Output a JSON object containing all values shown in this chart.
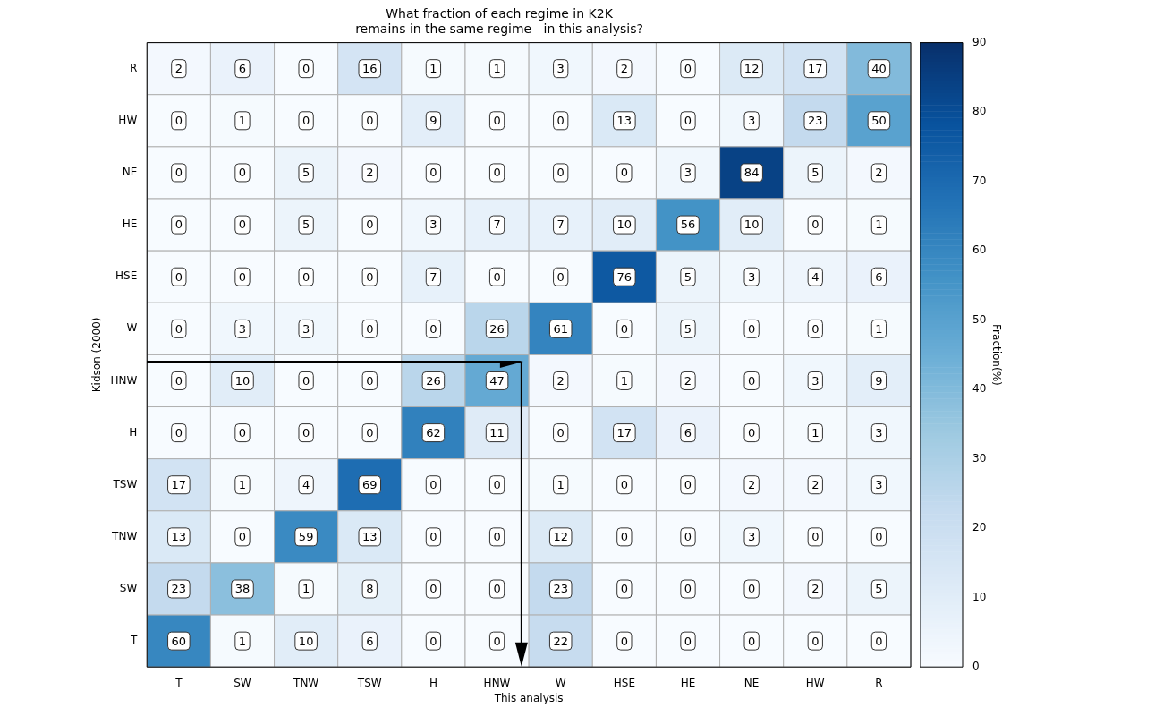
{
  "chart_data": {
    "type": "heatmap",
    "title": "What fraction of each regime in K2K\nremains in the same regime   in this analysis?",
    "xlabel": "This analysis",
    "ylabel": "Kidson (2000)",
    "clabel": "Fraction(%)",
    "categories": [
      "T",
      "SW",
      "TNW",
      "TSW",
      "H",
      "HNW",
      "W",
      "HSE",
      "HE",
      "NE",
      "HW",
      "R"
    ],
    "y_categories": [
      "R",
      "HW",
      "NE",
      "HE",
      "HSE",
      "W",
      "HNW",
      "H",
      "TSW",
      "TNW",
      "SW",
      "T"
    ],
    "cells": [
      [
        2,
        6,
        0,
        16,
        1,
        1,
        3,
        2,
        0,
        12,
        17,
        40
      ],
      [
        0,
        1,
        0,
        0,
        9,
        0,
        0,
        13,
        0,
        3,
        23,
        50
      ],
      [
        0,
        0,
        5,
        2,
        0,
        0,
        0,
        0,
        3,
        84,
        5,
        2
      ],
      [
        0,
        0,
        5,
        0,
        3,
        7,
        7,
        10,
        56,
        10,
        0,
        1
      ],
      [
        0,
        0,
        0,
        0,
        7,
        0,
        0,
        76,
        5,
        3,
        4,
        6
      ],
      [
        0,
        3,
        3,
        0,
        0,
        26,
        61,
        0,
        5,
        0,
        0,
        1
      ],
      [
        0,
        10,
        0,
        0,
        26,
        47,
        2,
        1,
        2,
        0,
        3,
        9
      ],
      [
        0,
        0,
        0,
        0,
        62,
        11,
        0,
        17,
        6,
        0,
        1,
        3
      ],
      [
        17,
        1,
        4,
        69,
        0,
        0,
        1,
        0,
        0,
        2,
        2,
        3
      ],
      [
        13,
        0,
        59,
        13,
        0,
        0,
        12,
        0,
        0,
        3,
        0,
        0
      ],
      [
        23,
        38,
        1,
        8,
        0,
        0,
        23,
        0,
        0,
        0,
        2,
        5
      ],
      [
        60,
        1,
        10,
        6,
        0,
        0,
        22,
        0,
        0,
        0,
        0,
        0
      ]
    ],
    "clim": [
      0,
      90
    ],
    "cticks": [
      0,
      10,
      20,
      30,
      40,
      50,
      60,
      70,
      80,
      90
    ],
    "data_labels": true
  }
}
